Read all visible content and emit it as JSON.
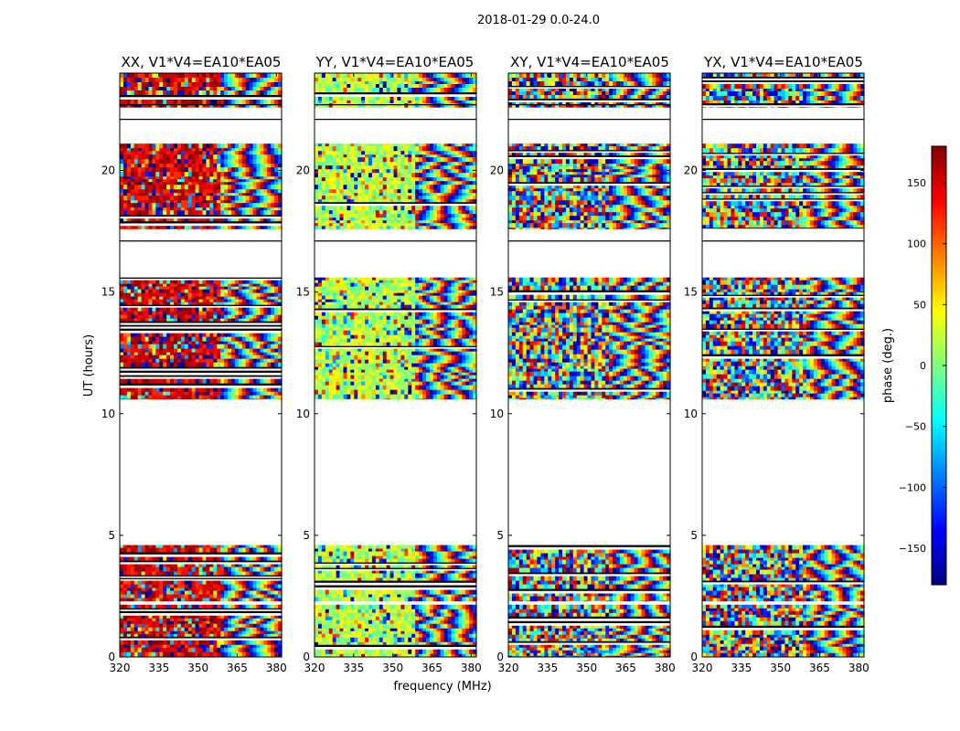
{
  "chart_data": {
    "type": "heatmap",
    "title": "2018-01-29 0.0-24.0",
    "xlabel": "frequency (MHz)",
    "ylabel": "UT (hours)",
    "xlim": [
      320,
      382
    ],
    "ylim": [
      0,
      24
    ],
    "xticks": [
      320,
      335,
      350,
      365,
      380
    ],
    "yticks": [
      0,
      5,
      10,
      15,
      20
    ],
    "colorbar": {
      "label": "phase (deg.)",
      "range": [
        -180,
        180
      ],
      "ticks": [
        150,
        100,
        50,
        0,
        -50,
        -100,
        -150
      ],
      "tick_labels": [
        "150",
        "100",
        "50",
        "0",
        "−50",
        "−100",
        "−150"
      ]
    },
    "panels": [
      {
        "title": "XX, V1*V4=EA10*EA05",
        "polarization": "XX",
        "baseline": "EA10*EA05",
        "phase_bias_deg": 150
      },
      {
        "title": "YY, V1*V4=EA10*EA05",
        "polarization": "YY",
        "baseline": "EA10*EA05",
        "phase_bias_deg": 20
      },
      {
        "title": "XY, V1*V4=EA10*EA05",
        "polarization": "XY",
        "baseline": "EA10*EA05",
        "phase_bias_deg": null
      },
      {
        "title": "YX, V1*V4=EA10*EA05",
        "polarization": "YX",
        "baseline": "EA10*EA05",
        "phase_bias_deg": null
      }
    ],
    "data_blocks_ut_hours": [
      [
        0.0,
        2.15
      ],
      [
        2.3,
        4.6
      ],
      [
        10.6,
        15.6
      ],
      [
        17.6,
        21.1
      ],
      [
        22.6,
        24.0
      ]
    ],
    "gap_lines_ut_hours": [
      17.1,
      22.1,
      22.7
    ]
  },
  "colors": {
    "jet": [
      "#00007f",
      "#0000ff",
      "#007fff",
      "#00ffff",
      "#7fff7f",
      "#ffff00",
      "#ff7f00",
      "#ff0000",
      "#7f0000"
    ]
  }
}
